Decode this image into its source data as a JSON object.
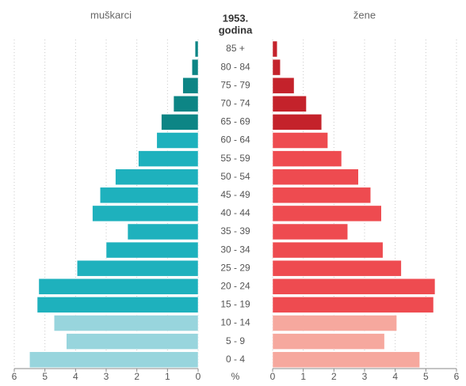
{
  "chart_data": {
    "type": "pyramid",
    "title": "1953.",
    "subtitle": "godina",
    "xlabel": "%",
    "categories": [
      "85 +",
      "80 - 84",
      "75 - 79",
      "70 - 74",
      "65 - 69",
      "60 - 64",
      "55 - 59",
      "50 - 54",
      "45 - 49",
      "40 - 44",
      "35 - 39",
      "30 - 34",
      "25 - 29",
      "20 - 24",
      "15 - 19",
      "10 - 14",
      "5 - 9",
      "0 - 4"
    ],
    "series": [
      {
        "name": "muškarci",
        "side": "left",
        "values": [
          0.1,
          0.2,
          0.5,
          0.8,
          1.2,
          1.35,
          1.95,
          2.7,
          3.2,
          3.45,
          2.3,
          3.0,
          3.95,
          5.2,
          5.25,
          4.7,
          4.3,
          5.5
        ],
        "colors": [
          "#0d8585",
          "#0d8585",
          "#0d8585",
          "#0d8585",
          "#0d8585",
          "#1eb1bd",
          "#1eb1bd",
          "#1eb1bd",
          "#1eb1bd",
          "#1eb1bd",
          "#1eb1bd",
          "#1eb1bd",
          "#1eb1bd",
          "#1eb1bd",
          "#1eb1bd",
          "#98d5dd",
          "#98d5dd",
          "#98d5dd"
        ]
      },
      {
        "name": "žene",
        "side": "right",
        "values": [
          0.15,
          0.25,
          0.7,
          1.1,
          1.6,
          1.8,
          2.25,
          2.8,
          3.2,
          3.55,
          2.45,
          3.6,
          4.2,
          5.3,
          5.25,
          4.05,
          3.65,
          4.8
        ],
        "colors": [
          "#c4222b",
          "#c4222b",
          "#c4222b",
          "#c4222b",
          "#c4222b",
          "#ee4b50",
          "#ee4b50",
          "#ee4b50",
          "#ee4b50",
          "#ee4b50",
          "#ee4b50",
          "#ee4b50",
          "#ee4b50",
          "#ee4b50",
          "#ee4b50",
          "#f6a89e",
          "#f6a89e",
          "#f6a89e"
        ]
      }
    ],
    "xlim": [
      0,
      6
    ],
    "xticks": [
      0,
      1,
      2,
      3,
      4,
      5,
      6
    ],
    "grid": true
  }
}
